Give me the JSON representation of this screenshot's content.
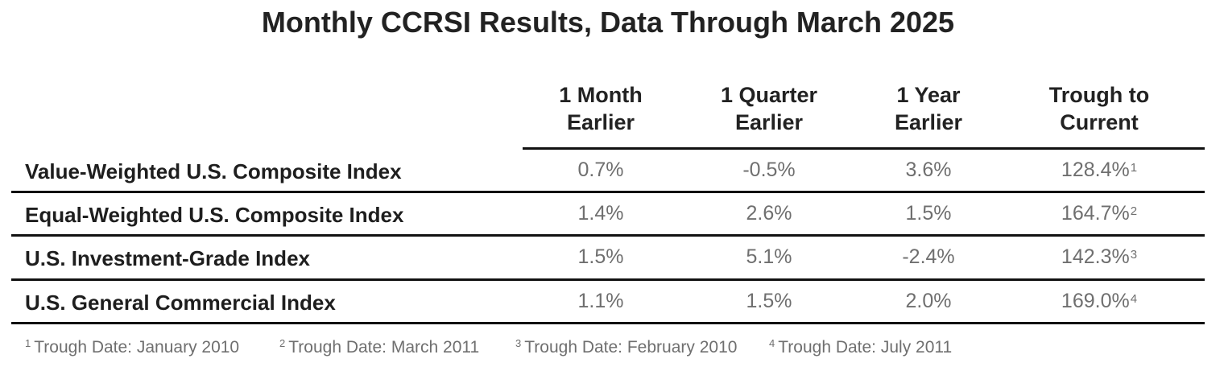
{
  "chart_data": {
    "type": "table",
    "title": "Monthly CCRSI Results, Data Through March 2025",
    "columns": [
      {
        "line1": "1 Month",
        "line2": "Earlier"
      },
      {
        "line1": "1 Quarter",
        "line2": "Earlier"
      },
      {
        "line1": "1 Year",
        "line2": "Earlier"
      },
      {
        "line1": "Trough to",
        "line2": "Current"
      }
    ],
    "rows": [
      {
        "label": "Value-Weighted U.S. Composite Index",
        "values": [
          "0.7%",
          "-0.5%",
          "3.6%",
          "128.4%"
        ],
        "note": "1"
      },
      {
        "label": "Equal-Weighted U.S. Composite Index",
        "values": [
          "1.4%",
          "2.6%",
          "1.5%",
          "164.7%"
        ],
        "note": "2"
      },
      {
        "label": "U.S. Investment-Grade Index",
        "values": [
          "1.5%",
          "5.1%",
          "-2.4%",
          "142.3%"
        ],
        "note": "3"
      },
      {
        "label": "U.S. General Commercial Index",
        "values": [
          "1.1%",
          "1.5%",
          "2.0%",
          "169.0%"
        ],
        "note": "4"
      }
    ],
    "footnotes": [
      {
        "num": "1",
        "text": "Trough Date: January 2010"
      },
      {
        "num": "2",
        "text": "Trough Date: March 2011"
      },
      {
        "num": "3",
        "text": "Trough Date: February 2010"
      },
      {
        "num": "4",
        "text": "Trough Date: July 2011"
      }
    ]
  }
}
